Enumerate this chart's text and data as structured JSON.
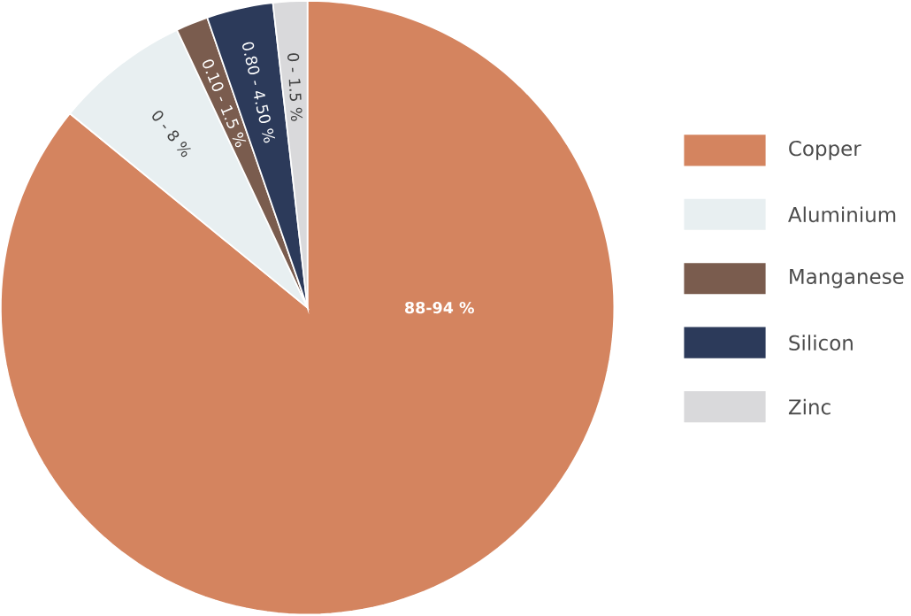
{
  "chart_data": {
    "type": "pie",
    "categories": [
      "Copper",
      "Aluminium",
      "Manganese",
      "Silicon",
      "Zinc"
    ],
    "values": [
      85.9,
      7.1,
      1.7,
      3.5,
      1.8
    ],
    "annotations": [
      "88-94 %",
      "0 - 8 %",
      "0.10 - 1.5 %",
      "0.80 - 4.50 %",
      "0 - 1.5 %"
    ],
    "colors": [
      "#d4845f",
      "#e8eff1",
      "#7a5c4e",
      "#2c3a5a",
      "#d9d9db"
    ],
    "legend": "right"
  }
}
